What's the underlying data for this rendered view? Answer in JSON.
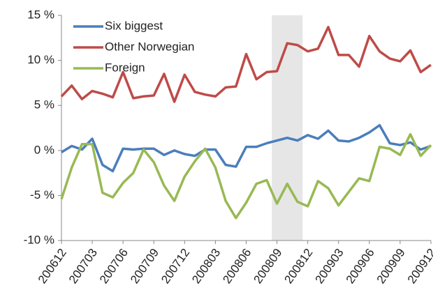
{
  "chart_data": {
    "type": "line",
    "categories": [
      "200612",
      null,
      null,
      "200703",
      null,
      null,
      "200706",
      null,
      null,
      "200709",
      null,
      null,
      "200712",
      null,
      null,
      "200803",
      null,
      null,
      "200806",
      null,
      null,
      "200809",
      null,
      null,
      "200812",
      null,
      null,
      "200903",
      null,
      null,
      "200906",
      null,
      null,
      "200909",
      null,
      null,
      "200912"
    ],
    "series": [
      {
        "name": "Six biggest",
        "color": "#4a7ebb",
        "values": [
          -0.2,
          0.5,
          0.1,
          1.3,
          -1.6,
          -2.3,
          0.2,
          0.1,
          0.2,
          0.2,
          -0.5,
          0,
          -0.4,
          -0.6,
          0.1,
          0.1,
          -1.6,
          -1.8,
          0.4,
          0.4,
          0.8,
          1.1,
          1.4,
          1.1,
          1.7,
          1.3,
          2.2,
          1.1,
          1.0,
          1.4,
          2.0,
          2.8,
          0.8,
          0.6,
          0.9,
          0.1,
          0.5
        ]
      },
      {
        "name": "Other Norwegian",
        "color": "#be4b48",
        "values": [
          6.0,
          7.2,
          5.7,
          6.6,
          6.3,
          5.9,
          8.7,
          5.8,
          6.0,
          6.1,
          8.5,
          5.4,
          8.4,
          6.5,
          6.2,
          6.0,
          7.0,
          7.1,
          10.7,
          7.9,
          8.7,
          8.8,
          11.9,
          11.7,
          11.0,
          11.3,
          13.7,
          10.6,
          10.6,
          9.3,
          12.7,
          11.0,
          10.2,
          9.9,
          11.1,
          8.7,
          9.5
        ]
      },
      {
        "name": "Foreign",
        "color": "#98b954",
        "values": [
          -5.4,
          -1.9,
          0.7,
          0.7,
          -4.7,
          -5.2,
          -3.6,
          -2.5,
          0.1,
          -1.3,
          -3.9,
          -5.6,
          -2.9,
          -1.2,
          0.2,
          -1.9,
          -5.6,
          -7.5,
          -5.8,
          -3.7,
          -3.3,
          -5.9,
          -3.7,
          -5.7,
          -6.2,
          -3.4,
          -4.2,
          -6.1,
          -4.6,
          -3.1,
          -3.4,
          0.4,
          0.2,
          -0.5,
          1.8,
          -0.6,
          0.6
        ]
      }
    ],
    "shaded": {
      "from": "200809",
      "to": "200812",
      "color": "#e6e6e6"
    },
    "ylim": [
      -10,
      15
    ],
    "yticks": [
      {
        "value": -10,
        "label": "-10 %"
      },
      {
        "value": -5,
        "label": "-5 %"
      },
      {
        "value": 0,
        "label": "0 %"
      },
      {
        "value": 5,
        "label": "5 %"
      },
      {
        "value": 10,
        "label": "10 %"
      },
      {
        "value": 15,
        "label": "15 %"
      }
    ],
    "grid": false,
    "legend": "top-left"
  }
}
